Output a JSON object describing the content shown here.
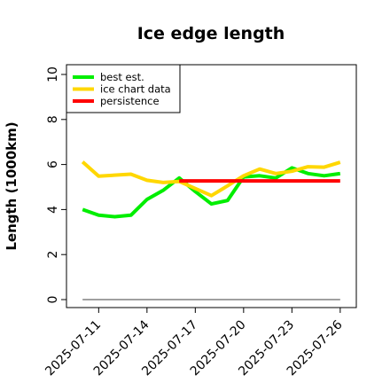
{
  "chart_data": {
    "type": "line",
    "title": "Ice edge length",
    "xlabel": "",
    "ylabel": "Length (1000km)",
    "ylim": [
      0,
      10
    ],
    "yticks": [
      0,
      2,
      4,
      6,
      8,
      10
    ],
    "xlim": [
      "2025-07-09",
      "2025-07-27"
    ],
    "xticks": [
      "2025-07-11",
      "2025-07-14",
      "2025-07-17",
      "2025-07-20",
      "2025-07-23",
      "2025-07-26"
    ],
    "grid": false,
    "legend_position": "top-left",
    "baseline": {
      "value": 0,
      "from": "2025-07-10",
      "to": "2025-07-26",
      "color": "#808080"
    },
    "series": [
      {
        "name": "best est.",
        "color": "#00ee00",
        "x": [
          "2025-07-10",
          "2025-07-11",
          "2025-07-12",
          "2025-07-13",
          "2025-07-14",
          "2025-07-15",
          "2025-07-16",
          "2025-07-17",
          "2025-07-18",
          "2025-07-19",
          "2025-07-20",
          "2025-07-21",
          "2025-07-22",
          "2025-07-23",
          "2025-07-24",
          "2025-07-25",
          "2025-07-26"
        ],
        "y": [
          4.0,
          3.75,
          3.68,
          3.75,
          4.45,
          4.85,
          5.4,
          4.8,
          4.25,
          4.4,
          5.45,
          5.5,
          5.4,
          5.85,
          5.6,
          5.5,
          5.6
        ]
      },
      {
        "name": "ice chart data",
        "color": "#ffd700",
        "x": [
          "2025-07-10",
          "2025-07-11",
          "2025-07-13",
          "2025-07-14",
          "2025-07-15",
          "2025-07-16",
          "2025-07-18",
          "2025-07-19",
          "2025-07-20",
          "2025-07-21",
          "2025-07-22",
          "2025-07-23",
          "2025-07-24",
          "2025-07-25",
          "2025-07-26"
        ],
        "y": [
          6.12,
          5.48,
          5.57,
          5.3,
          5.2,
          5.25,
          4.62,
          5.05,
          5.5,
          5.8,
          5.6,
          5.7,
          5.9,
          5.88,
          6.1
        ]
      },
      {
        "name": "persistence",
        "color": "#ff0000",
        "x": [
          "2025-07-16",
          "2025-07-26"
        ],
        "y": [
          5.27,
          5.27
        ]
      }
    ]
  }
}
